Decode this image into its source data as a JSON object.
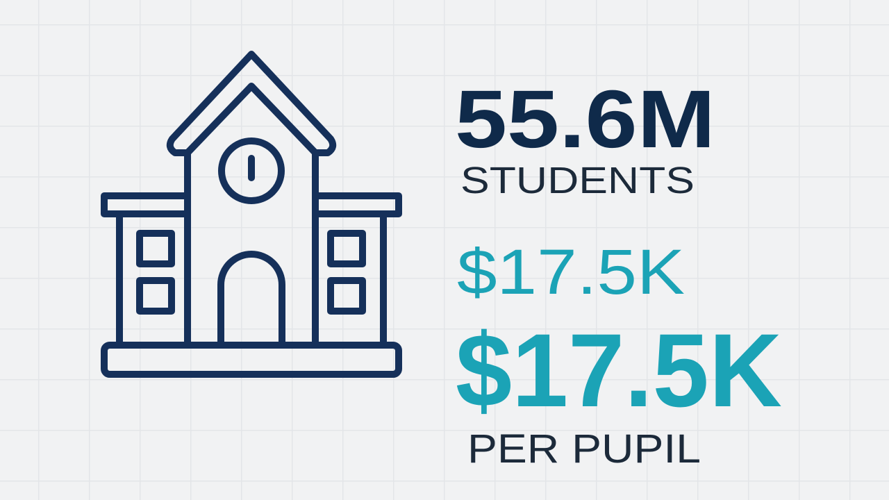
{
  "stats": [
    {
      "value": "55.6M",
      "label": "STUDENTS"
    },
    {
      "value": "$17.5K"
    },
    {
      "value": "$17.5K",
      "label": "PER PUPIL"
    }
  ]
}
